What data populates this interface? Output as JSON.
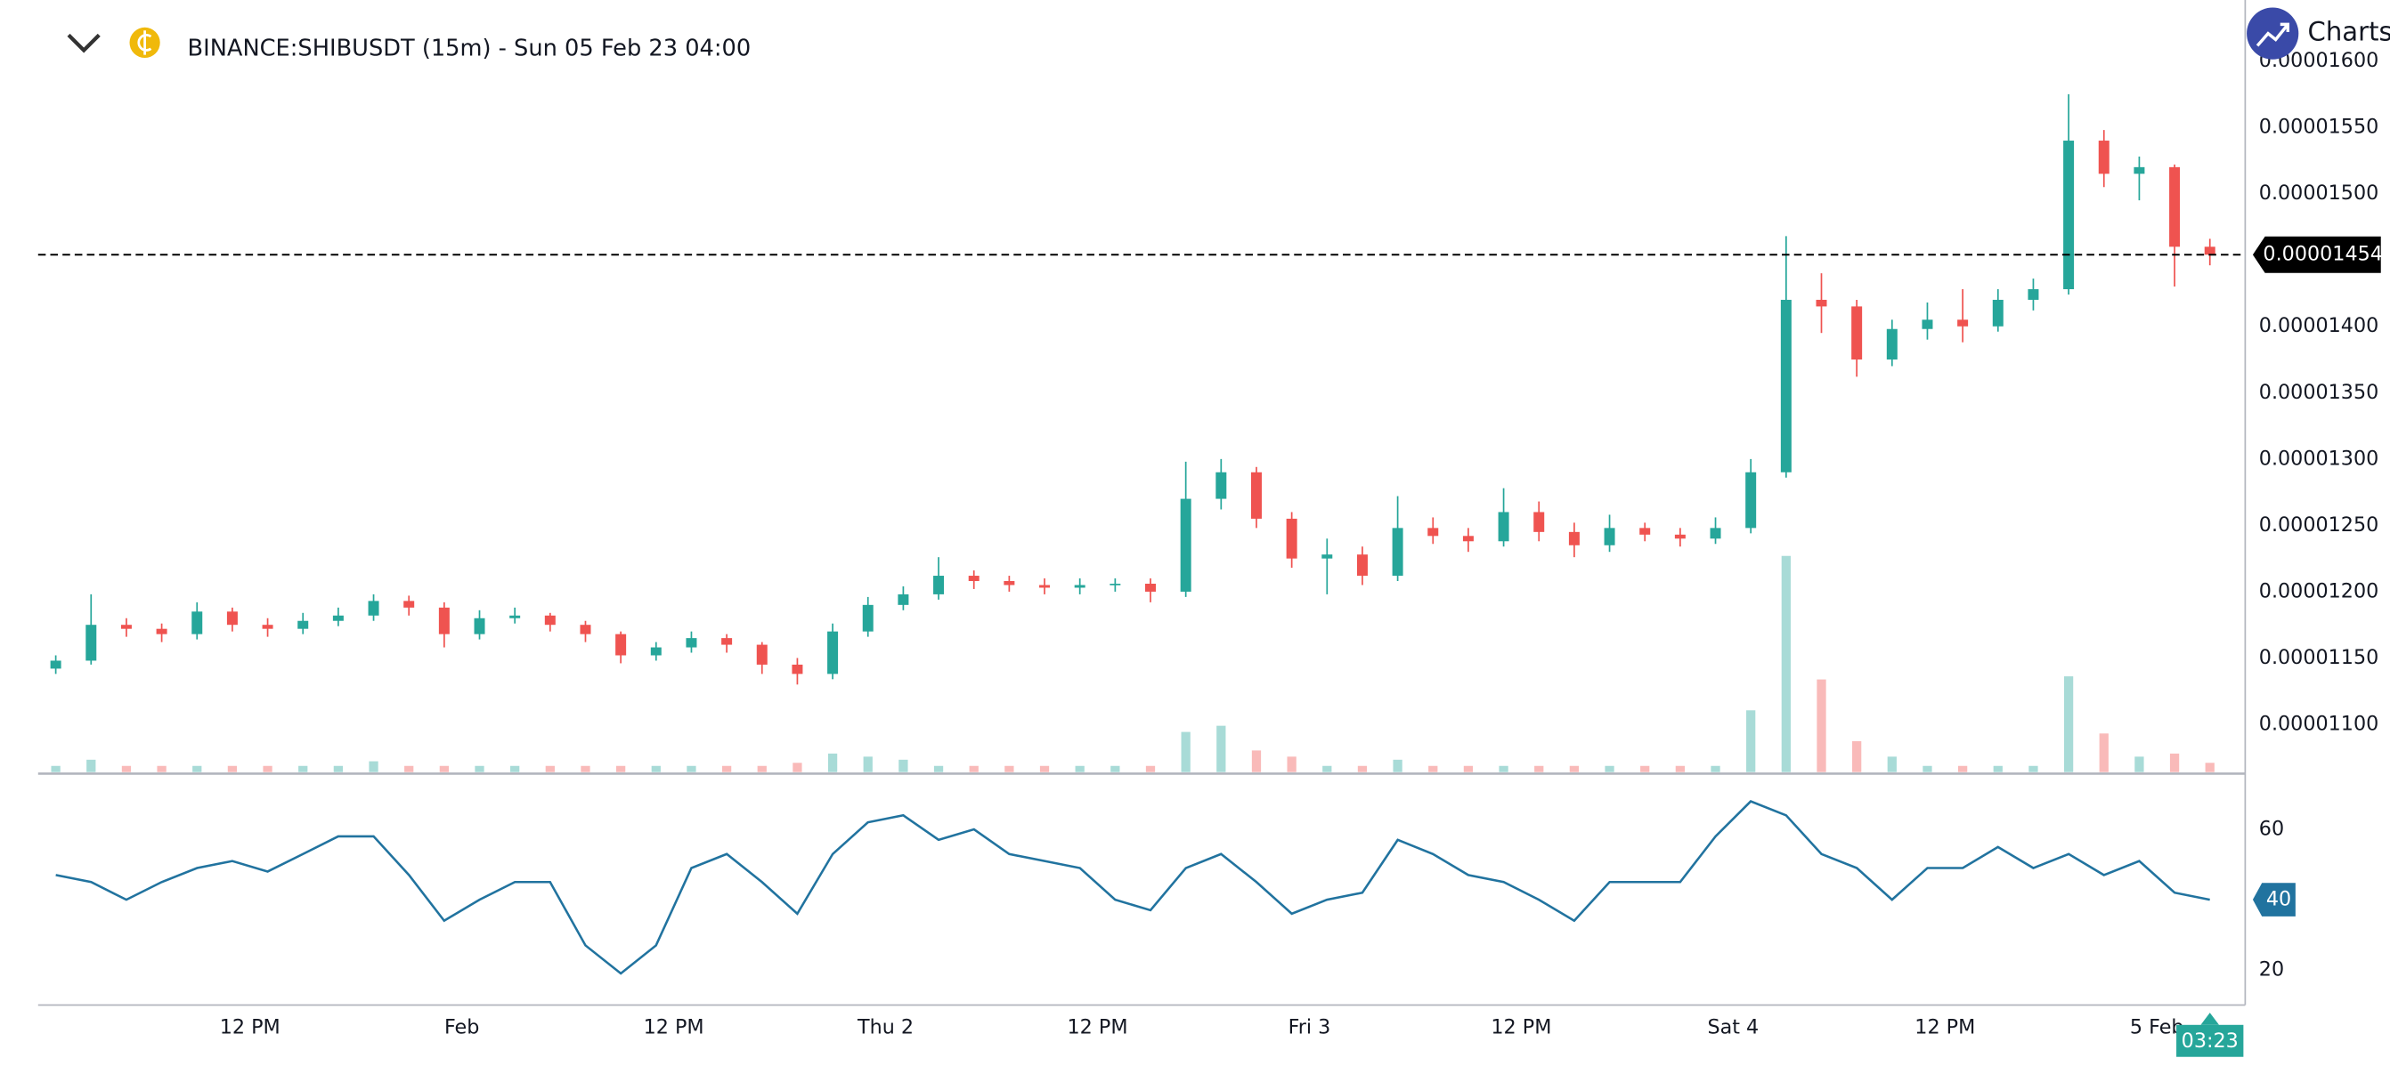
{
  "brand": "Charts p",
  "chart_data": [
    {
      "type": "candlestick",
      "title": "BINANCE:SHIBUSDT (15m) - Sun 05 Feb 23 04:00",
      "up_color": "#26a69a",
      "down_color": "#ef5350",
      "grid": false,
      "x": [
        -23,
        -21,
        -19,
        -17,
        -15,
        -13,
        -11,
        -9,
        -7,
        -5,
        -3,
        -1,
        1,
        3,
        5,
        7,
        9,
        11,
        13,
        15,
        17,
        19,
        21,
        23,
        25,
        27,
        29,
        31,
        33,
        35,
        37,
        39,
        41,
        43,
        45,
        47,
        49,
        51,
        53,
        55,
        57,
        59,
        61,
        63,
        65,
        67,
        69,
        71,
        73,
        75,
        77,
        79,
        81,
        83,
        85,
        87,
        89,
        91,
        93,
        95,
        97,
        99
      ],
      "open": [
        1.142e-05,
        1.148e-05,
        1.175e-05,
        1.172e-05,
        1.168e-05,
        1.185e-05,
        1.175e-05,
        1.172e-05,
        1.178e-05,
        1.182e-05,
        1.193e-05,
        1.188e-05,
        1.168e-05,
        1.18e-05,
        1.182e-05,
        1.175e-05,
        1.168e-05,
        1.152e-05,
        1.158e-05,
        1.165e-05,
        1.16e-05,
        1.145e-05,
        1.138e-05,
        1.17e-05,
        1.19e-05,
        1.198e-05,
        1.212e-05,
        1.208e-05,
        1.205e-05,
        1.203e-05,
        1.205e-05,
        1.206e-05,
        1.2e-05,
        1.27e-05,
        1.29e-05,
        1.255e-05,
        1.225e-05,
        1.228e-05,
        1.212e-05,
        1.248e-05,
        1.242e-05,
        1.238e-05,
        1.26e-05,
        1.245e-05,
        1.235e-05,
        1.248e-05,
        1.243e-05,
        1.24e-05,
        1.248e-05,
        1.29e-05,
        1.42e-05,
        1.415e-05,
        1.375e-05,
        1.398e-05,
        1.405e-05,
        1.4e-05,
        1.42e-05,
        1.428e-05,
        1.54e-05,
        1.515e-05,
        1.52e-05,
        1.46e-05
      ],
      "high": [
        1.152e-05,
        1.198e-05,
        1.18e-05,
        1.176e-05,
        1.192e-05,
        1.188e-05,
        1.18e-05,
        1.184e-05,
        1.188e-05,
        1.198e-05,
        1.197e-05,
        1.192e-05,
        1.186e-05,
        1.188e-05,
        1.184e-05,
        1.178e-05,
        1.17e-05,
        1.162e-05,
        1.17e-05,
        1.168e-05,
        1.162e-05,
        1.15e-05,
        1.176e-05,
        1.196e-05,
        1.204e-05,
        1.226e-05,
        1.216e-05,
        1.212e-05,
        1.21e-05,
        1.21e-05,
        1.21e-05,
        1.21e-05,
        1.298e-05,
        1.3e-05,
        1.294e-05,
        1.26e-05,
        1.24e-05,
        1.234e-05,
        1.272e-05,
        1.256e-05,
        1.248e-05,
        1.278e-05,
        1.268e-05,
        1.252e-05,
        1.258e-05,
        1.252e-05,
        1.248e-05,
        1.256e-05,
        1.3e-05,
        1.468e-05,
        1.44e-05,
        1.42e-05,
        1.405e-05,
        1.418e-05,
        1.428e-05,
        1.428e-05,
        1.436e-05,
        1.575e-05,
        1.548e-05,
        1.528e-05,
        1.522e-05,
        1.466e-05
      ],
      "low": [
        1.138e-05,
        1.145e-05,
        1.166e-05,
        1.162e-05,
        1.164e-05,
        1.17e-05,
        1.166e-05,
        1.168e-05,
        1.174e-05,
        1.178e-05,
        1.182e-05,
        1.158e-05,
        1.164e-05,
        1.176e-05,
        1.17e-05,
        1.162e-05,
        1.146e-05,
        1.148e-05,
        1.154e-05,
        1.154e-05,
        1.138e-05,
        1.13e-05,
        1.134e-05,
        1.166e-05,
        1.186e-05,
        1.194e-05,
        1.202e-05,
        1.2e-05,
        1.198e-05,
        1.198e-05,
        1.2e-05,
        1.192e-05,
        1.196e-05,
        1.262e-05,
        1.248e-05,
        1.218e-05,
        1.198e-05,
        1.205e-05,
        1.208e-05,
        1.236e-05,
        1.23e-05,
        1.234e-05,
        1.238e-05,
        1.226e-05,
        1.23e-05,
        1.238e-05,
        1.234e-05,
        1.236e-05,
        1.244e-05,
        1.286e-05,
        1.395e-05,
        1.362e-05,
        1.37e-05,
        1.39e-05,
        1.388e-05,
        1.396e-05,
        1.412e-05,
        1.424e-05,
        1.505e-05,
        1.495e-05,
        1.43e-05,
        1.446e-05
      ],
      "close": [
        1.148e-05,
        1.175e-05,
        1.172e-05,
        1.168e-05,
        1.185e-05,
        1.175e-05,
        1.172e-05,
        1.178e-05,
        1.182e-05,
        1.193e-05,
        1.188e-05,
        1.168e-05,
        1.18e-05,
        1.182e-05,
        1.175e-05,
        1.168e-05,
        1.152e-05,
        1.158e-05,
        1.165e-05,
        1.16e-05,
        1.145e-05,
        1.138e-05,
        1.17e-05,
        1.19e-05,
        1.198e-05,
        1.212e-05,
        1.208e-05,
        1.205e-05,
        1.203e-05,
        1.205e-05,
        1.206e-05,
        1.2e-05,
        1.27e-05,
        1.29e-05,
        1.255e-05,
        1.225e-05,
        1.228e-05,
        1.212e-05,
        1.248e-05,
        1.242e-05,
        1.238e-05,
        1.26e-05,
        1.245e-05,
        1.235e-05,
        1.248e-05,
        1.243e-05,
        1.24e-05,
        1.248e-05,
        1.29e-05,
        1.42e-05,
        1.415e-05,
        1.375e-05,
        1.398e-05,
        1.405e-05,
        1.4e-05,
        1.42e-05,
        1.428e-05,
        1.54e-05,
        1.515e-05,
        1.52e-05,
        1.46e-05,
        1.454e-05
      ],
      "volume": [
        4,
        8,
        4,
        4,
        4,
        4,
        4,
        4,
        4,
        7,
        4,
        4,
        4,
        4,
        4,
        4,
        4,
        4,
        4,
        4,
        4,
        6,
        12,
        10,
        8,
        4,
        4,
        4,
        4,
        4,
        4,
        4,
        26,
        30,
        14,
        10,
        4,
        4,
        8,
        4,
        4,
        4,
        4,
        4,
        4,
        4,
        4,
        4,
        40,
        140,
        60,
        20,
        10,
        4,
        4,
        4,
        4,
        62,
        25,
        10,
        12,
        6
      ],
      "xlim": [
        -24,
        101
      ],
      "xticks": [
        {
          "value": -12,
          "label": "12 PM"
        },
        {
          "value": 0,
          "label": "Feb"
        },
        {
          "value": 12,
          "label": "12 PM"
        },
        {
          "value": 24,
          "label": "Thu 2"
        },
        {
          "value": 36,
          "label": "12 PM"
        },
        {
          "value": 48,
          "label": "Fri 3"
        },
        {
          "value": 60,
          "label": "12 PM"
        },
        {
          "value": 72,
          "label": "Sat 4"
        },
        {
          "value": 84,
          "label": "12 PM"
        },
        {
          "value": 96,
          "label": "5 Feb"
        }
      ],
      "ylim": [
        1.064e-05,
        1.646e-05
      ],
      "yticks": [
        {
          "value": 1.1e-05,
          "label": "0.00001100"
        },
        {
          "value": 1.15e-05,
          "label": "0.00001150"
        },
        {
          "value": 1.2e-05,
          "label": "0.00001200"
        },
        {
          "value": 1.25e-05,
          "label": "0.00001250"
        },
        {
          "value": 1.3e-05,
          "label": "0.00001300"
        },
        {
          "value": 1.35e-05,
          "label": "0.00001350"
        },
        {
          "value": 1.4e-05,
          "label": "0.00001400"
        },
        {
          "value": 1.45e-05,
          "label": "0.00001450"
        },
        {
          "value": 1.5e-05,
          "label": "0.00001500"
        },
        {
          "value": 1.55e-05,
          "label": "0.00001550"
        },
        {
          "value": 1.6e-05,
          "label": "0.00001600"
        }
      ],
      "last_price": {
        "value": 1.454e-05,
        "label": "0.00001454"
      },
      "countdown": "03:23"
    },
    {
      "type": "line",
      "color": "#21739f",
      "grid": false,
      "x": [
        -23,
        -21,
        -19,
        -17,
        -15,
        -13,
        -11,
        -9,
        -7,
        -5,
        -3,
        -1,
        1,
        3,
        5,
        7,
        9,
        11,
        13,
        15,
        17,
        19,
        21,
        23,
        25,
        27,
        29,
        31,
        33,
        35,
        37,
        39,
        41,
        43,
        45,
        47,
        49,
        51,
        53,
        55,
        57,
        59,
        61,
        63,
        65,
        67,
        69,
        71,
        73,
        75,
        77,
        79,
        81,
        83,
        85,
        87,
        89,
        91,
        93,
        95,
        97,
        99
      ],
      "values": [
        47,
        45,
        40,
        45,
        49,
        51,
        48,
        53,
        58,
        58,
        47,
        34,
        40,
        45,
        45,
        27,
        19,
        27,
        49,
        53,
        45,
        36,
        53,
        62,
        64,
        57,
        60,
        53,
        51,
        49,
        40,
        37,
        49,
        53,
        45,
        36,
        40,
        42,
        57,
        53,
        47,
        45,
        40,
        34,
        45,
        45,
        45,
        58,
        68,
        64,
        53,
        49,
        40,
        49,
        49,
        55,
        49,
        53,
        47,
        51,
        42,
        40
      ],
      "xlim": [
        -24,
        101
      ],
      "ylim": [
        10,
        75
      ],
      "yticks": [
        20,
        40,
        60
      ]
    }
  ]
}
